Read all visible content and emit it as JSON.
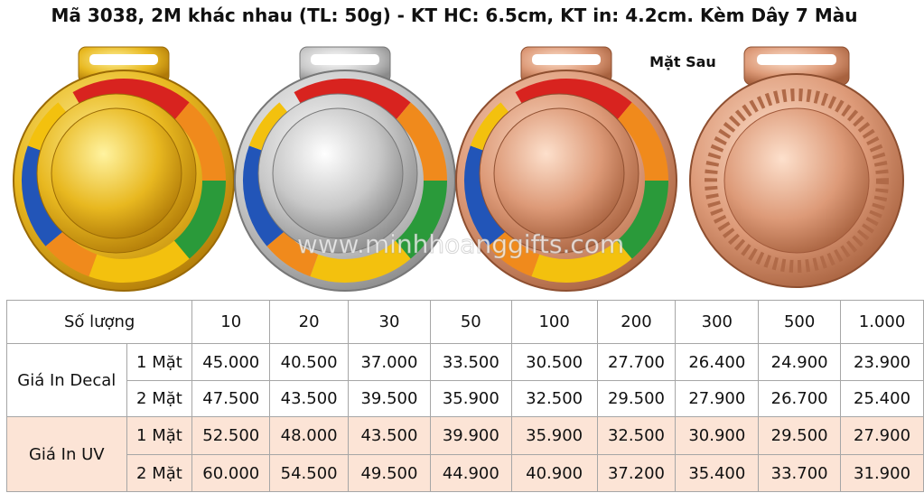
{
  "header": {
    "title": "Mã 3038, 2M khác nhau (TL: 50g) - KT HC: 6.5cm, KT in: 4.2cm. Kèm Dây 7 Màu",
    "back_label": "Mặt Sau",
    "watermark": "www.minhhoanggifts.com"
  },
  "table": {
    "quantity_label": "Số lượng",
    "quantities": [
      "10",
      "20",
      "30",
      "50",
      "100",
      "200",
      "300",
      "500",
      "1.000"
    ],
    "groups": [
      {
        "name": "Giá In Decal",
        "rows": [
          {
            "label": "1 Mặt",
            "prices": [
              "45.000",
              "40.500",
              "37.000",
              "33.500",
              "30.500",
              "27.700",
              "26.400",
              "24.900",
              "23.900"
            ]
          },
          {
            "label": "2 Mặt",
            "prices": [
              "47.500",
              "43.500",
              "39.500",
              "35.900",
              "32.500",
              "29.500",
              "27.900",
              "26.700",
              "25.400"
            ]
          }
        ]
      },
      {
        "name": "Giá In UV",
        "rows": [
          {
            "label": "1 Mặt",
            "prices": [
              "52.500",
              "48.000",
              "43.500",
              "39.900",
              "35.900",
              "32.500",
              "30.900",
              "29.500",
              "27.900"
            ]
          },
          {
            "label": "2 Mặt",
            "prices": [
              "60.000",
              "54.500",
              "49.500",
              "44.900",
              "40.900",
              "37.200",
              "35.400",
              "33.700",
              "31.900"
            ]
          }
        ]
      }
    ]
  }
}
